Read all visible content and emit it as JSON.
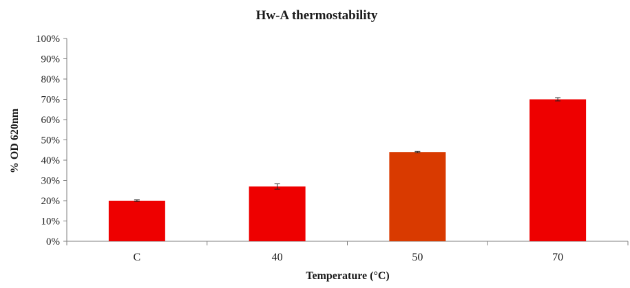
{
  "chart_data": {
    "type": "bar",
    "title": "Hw-A thermostability",
    "xlabel": "Temperature (°C)",
    "ylabel": "% OD 620nm",
    "categories": [
      "C",
      "40",
      "50",
      "70"
    ],
    "values": [
      0.2,
      0.27,
      0.44,
      0.7
    ],
    "errors": [
      0.004,
      0.013,
      0.003,
      0.008
    ],
    "ylim": [
      0,
      1
    ],
    "yticks": [
      "0%",
      "10%",
      "20%",
      "30%",
      "40%",
      "50%",
      "60%",
      "70%",
      "80%",
      "90%",
      "100%"
    ],
    "bar_colors": [
      "#ee0000",
      "#ee0000",
      "#d93a00",
      "#ee0000"
    ],
    "grid": false,
    "legend": "none"
  }
}
